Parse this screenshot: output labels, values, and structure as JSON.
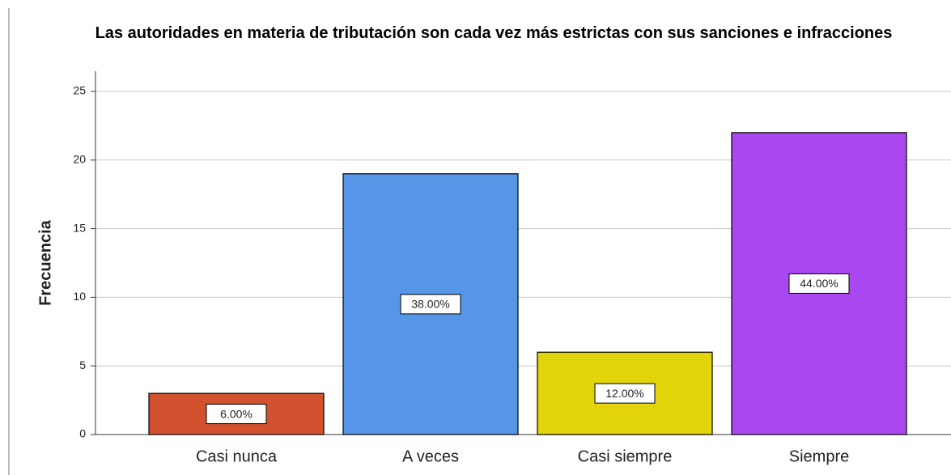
{
  "chart_data": {
    "type": "bar",
    "title": "Las autoridades en materia de tributación son cada vez más estrictas con sus sanciones e infracciones",
    "y_label": "Frecuencia",
    "categories": [
      "Casi nunca",
      "A veces",
      "Casi siempre",
      "Siempre"
    ],
    "values": [
      3,
      19,
      6,
      22
    ],
    "percent_labels": [
      "6.00%",
      "38.00%",
      "12.00%",
      "44.00%"
    ],
    "colors": [
      "#d2522f",
      "#5596e6",
      "#e1d40b",
      "#a948f1"
    ],
    "ylim": [
      0,
      25
    ],
    "yticks": [
      0,
      5,
      10,
      15,
      20,
      25
    ],
    "grid": true
  }
}
